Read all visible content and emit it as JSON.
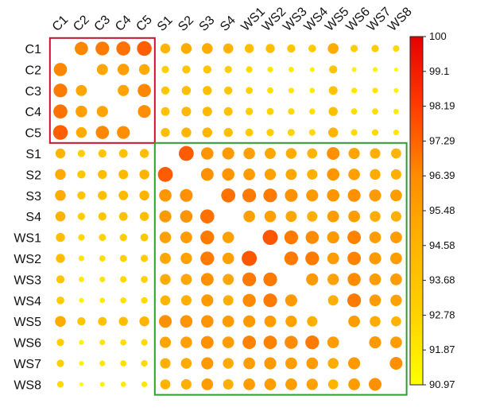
{
  "chart_data": {
    "type": "heatmap",
    "shape": "circle",
    "labels": [
      "C1",
      "C2",
      "C3",
      "C4",
      "C5",
      "S1",
      "S2",
      "S3",
      "S4",
      "WS1",
      "WS2",
      "WS3",
      "WS4",
      "WS5",
      "WS6",
      "WS7",
      "WS8"
    ],
    "colorbar": {
      "min": 90.97,
      "max": 100,
      "ticks": [
        "100",
        "99.1",
        "98.19",
        "97.29",
        "96.39",
        "95.48",
        "94.58",
        "93.68",
        "92.78",
        "91.87",
        "90.97"
      ],
      "colors": [
        "#ffff00",
        "#ffd200",
        "#ffb400",
        "#ff8c00",
        "#ff3c00",
        "#e60000"
      ]
    },
    "matrix": [
      [
        null,
        96.5,
        96.8,
        97.0,
        97.4,
        94.5,
        95.0,
        95.0,
        94.6,
        94.0,
        94.0,
        93.5,
        93.2,
        95.0,
        93.0,
        93.0,
        92.5
      ],
      [
        96.5,
        null,
        95.2,
        95.5,
        95.0,
        93.0,
        93.5,
        93.5,
        93.0,
        92.5,
        92.0,
        91.8,
        91.5,
        93.5,
        91.5,
        91.5,
        91.0
      ],
      [
        96.8,
        95.2,
        null,
        95.3,
        96.5,
        93.5,
        94.0,
        94.0,
        93.5,
        92.8,
        92.3,
        92.0,
        91.8,
        93.8,
        92.0,
        92.0,
        91.5
      ],
      [
        97.0,
        95.5,
        95.3,
        null,
        96.3,
        93.8,
        94.3,
        94.3,
        93.8,
        93.0,
        92.8,
        92.5,
        92.2,
        94.0,
        92.3,
        92.3,
        91.8
      ],
      [
        97.4,
        95.0,
        96.5,
        96.3,
        null,
        94.0,
        94.5,
        94.5,
        94.0,
        93.3,
        93.0,
        92.8,
        92.5,
        94.5,
        92.5,
        92.5,
        92.0
      ],
      [
        94.5,
        93.0,
        93.5,
        93.8,
        94.0,
        null,
        97.5,
        96.0,
        95.8,
        95.5,
        95.2,
        95.0,
        94.6,
        96.2,
        95.3,
        94.8,
        94.6
      ],
      [
        95.0,
        93.5,
        94.0,
        94.3,
        94.5,
        97.5,
        null,
        96.2,
        96.0,
        95.6,
        95.4,
        95.2,
        94.8,
        96.0,
        95.5,
        95.0,
        94.8
      ],
      [
        95.0,
        93.5,
        94.0,
        94.3,
        94.5,
        96.0,
        96.2,
        null,
        97.0,
        96.8,
        96.8,
        96.2,
        95.8,
        96.0,
        96.2,
        95.8,
        95.6
      ],
      [
        94.6,
        93.0,
        93.5,
        93.8,
        94.0,
        95.8,
        96.0,
        97.0,
        null,
        95.5,
        95.5,
        95.2,
        94.8,
        95.6,
        95.6,
        95.0,
        94.8
      ],
      [
        94.0,
        92.5,
        92.8,
        93.0,
        93.3,
        95.5,
        95.6,
        96.8,
        95.5,
        null,
        97.6,
        96.8,
        96.4,
        95.8,
        96.6,
        95.6,
        95.6
      ],
      [
        94.0,
        92.0,
        92.3,
        92.8,
        93.0,
        95.2,
        95.4,
        96.8,
        95.5,
        97.6,
        null,
        96.8,
        96.8,
        95.6,
        96.6,
        95.8,
        95.6
      ],
      [
        93.5,
        91.8,
        92.0,
        92.5,
        92.8,
        95.0,
        95.2,
        96.2,
        95.2,
        96.8,
        96.8,
        null,
        95.8,
        95.4,
        96.4,
        95.6,
        95.6
      ],
      [
        93.2,
        91.5,
        91.8,
        92.2,
        92.5,
        94.6,
        94.8,
        95.8,
        94.8,
        96.4,
        96.8,
        95.8,
        null,
        94.8,
        96.8,
        95.6,
        95.4
      ],
      [
        95.0,
        93.5,
        93.8,
        94.0,
        94.5,
        96.2,
        96.0,
        96.0,
        95.6,
        95.8,
        95.6,
        95.4,
        94.8,
        null,
        95.6,
        95.0,
        94.6
      ],
      [
        93.0,
        91.5,
        92.0,
        92.3,
        92.5,
        95.3,
        95.5,
        96.2,
        95.6,
        96.6,
        96.6,
        96.4,
        96.8,
        95.6,
        null,
        95.8,
        95.6
      ],
      [
        93.0,
        91.5,
        92.0,
        92.3,
        92.5,
        94.8,
        95.0,
        95.8,
        95.0,
        95.6,
        95.8,
        95.6,
        95.6,
        95.0,
        95.8,
        null,
        96.2
      ],
      [
        92.5,
        91.0,
        91.5,
        91.8,
        92.0,
        94.6,
        94.8,
        95.6,
        94.8,
        95.6,
        95.6,
        95.6,
        95.4,
        94.6,
        95.6,
        96.2,
        null
      ]
    ],
    "highlight_boxes": [
      {
        "from": "C1",
        "to": "C5",
        "color": "#c8102e"
      },
      {
        "from": "S1",
        "to": "WS8",
        "color": "#2ca02c"
      }
    ]
  }
}
